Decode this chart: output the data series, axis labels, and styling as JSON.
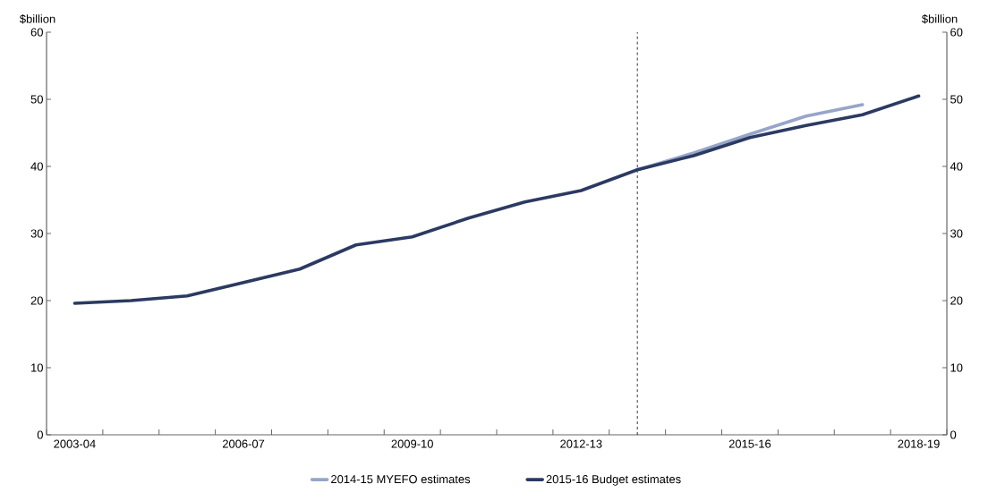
{
  "chart_data": {
    "type": "line",
    "ylabel": "$billion",
    "y2label": "$billion",
    "categories": [
      "2003-04",
      null,
      null,
      "2006-07",
      null,
      null,
      "2009-10",
      null,
      null,
      "2012-13",
      null,
      null,
      "2015-16",
      null,
      null,
      "2018-19"
    ],
    "ylim": [
      0,
      60
    ],
    "yticks": [
      0,
      10,
      20,
      30,
      40,
      50,
      60
    ],
    "y2lim": [
      0,
      60
    ],
    "y2ticks": [
      0,
      10,
      20,
      30,
      40,
      50,
      60
    ],
    "series": [
      {
        "name": "2014-15 MYEFO estimates",
        "color": "#96a5c8",
        "values": [
          null,
          null,
          null,
          null,
          null,
          null,
          null,
          null,
          null,
          null,
          39.5,
          42.0,
          44.8,
          47.5,
          49.2,
          null
        ]
      },
      {
        "name": "2015-16 Budget estimates",
        "color": "#2b3a62",
        "values": [
          19.6,
          20.0,
          20.7,
          22.7,
          24.7,
          28.3,
          29.5,
          32.3,
          34.7,
          36.4,
          39.5,
          41.6,
          44.3,
          46.1,
          47.7,
          50.5
        ]
      }
    ],
    "legend": "bottom",
    "marker": "none",
    "line_style": "solid"
  }
}
